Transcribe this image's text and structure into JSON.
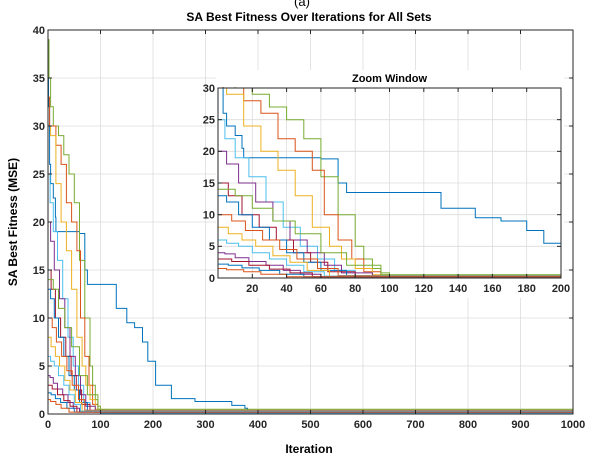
{
  "chart_data": [
    {
      "type": "line",
      "panel_label": "(a)",
      "title": "SA Best Fitness Over Iterations for All Sets",
      "xlabel": "Iteration",
      "ylabel": "SA Best Fitness (MSE)",
      "xlim": [
        0,
        1000
      ],
      "ylim": [
        0,
        40
      ],
      "xticks": [
        0,
        100,
        200,
        300,
        400,
        500,
        600,
        700,
        800,
        900,
        1000
      ],
      "yticks": [
        0,
        5,
        10,
        15,
        20,
        25,
        30,
        35,
        40
      ],
      "grid": true,
      "legend": "none",
      "colors": [
        "#0072BD",
        "#D95319",
        "#EDB120",
        "#7E2F8E",
        "#77AC30",
        "#4DBEEE",
        "#A2142F"
      ],
      "series": [
        {
          "color": "#0072BD",
          "x": [
            0,
            1,
            3,
            5,
            10,
            14,
            15,
            20,
            30,
            35,
            40,
            48,
            60,
            70,
            75,
            80,
            100,
            110,
            130,
            140,
            145,
            150,
            165,
            180,
            190,
            205,
            215,
            235,
            260,
            280,
            300,
            310,
            350,
            375,
            380,
            390,
            430,
            450,
            500,
            520,
            600,
            700,
            800,
            900,
            1000
          ],
          "y": [
            38,
            32,
            26,
            24,
            22.5,
            20.5,
            19,
            19,
            19,
            19,
            19,
            19,
            18.8,
            15,
            13.5,
            13.5,
            13.5,
            13.5,
            11,
            11,
            11,
            9.5,
            9,
            7.5,
            5.5,
            3,
            3,
            1.6,
            1.6,
            1.3,
            1.3,
            1.3,
            0.9,
            0.6,
            0.3,
            0.2,
            0.15,
            0.1,
            0.1,
            0.05,
            0.03,
            0.02,
            0.02,
            0.02,
            0.02
          ]
        },
        {
          "color": "#77AC30",
          "x": [
            0,
            2,
            5,
            10,
            20,
            30,
            40,
            50,
            60,
            70,
            80,
            85,
            90,
            95,
            100,
            110,
            200,
            1000
          ],
          "y": [
            39,
            35,
            32,
            30,
            29,
            27,
            25,
            22,
            16,
            10,
            5,
            3,
            1.5,
            0.8,
            0.3,
            0.1,
            0.05,
            0.05
          ]
        },
        {
          "color": "#D95319",
          "x": [
            0,
            3,
            8,
            15,
            25,
            35,
            45,
            55,
            62,
            70,
            78,
            85,
            95,
            110,
            1000
          ],
          "y": [
            33,
            30,
            30,
            28,
            26,
            22,
            20,
            17,
            10,
            6,
            3,
            1,
            0.4,
            0.1,
            0.05
          ]
        },
        {
          "color": "#EDB120",
          "x": [
            0,
            5,
            15,
            25,
            35,
            45,
            55,
            65,
            72,
            80,
            90,
            100,
            1000
          ],
          "y": [
            30,
            29,
            24,
            20,
            17,
            13,
            8,
            5,
            3,
            1.5,
            0.5,
            0.2,
            0.05
          ]
        },
        {
          "color": "#4DBEEE",
          "x": [
            0,
            4,
            10,
            18,
            28,
            38,
            48,
            58,
            68,
            80,
            100,
            1000
          ],
          "y": [
            25,
            22,
            19,
            16,
            12,
            8,
            5,
            3,
            1.2,
            0.4,
            0.1,
            0.05
          ]
        },
        {
          "color": "#7E2F8E",
          "x": [
            0,
            5,
            12,
            22,
            32,
            42,
            52,
            62,
            72,
            90,
            1000
          ],
          "y": [
            20,
            18,
            15,
            12,
            9,
            6,
            4,
            2,
            0.8,
            0.2,
            0.05
          ]
        },
        {
          "color": "#A2142F",
          "x": [
            0,
            6,
            14,
            24,
            34,
            44,
            54,
            64,
            80,
            1000
          ],
          "y": [
            15,
            13,
            10,
            8,
            6,
            4,
            2.5,
            1,
            0.3,
            0.05
          ]
        },
        {
          "color": "#0072BD",
          "x": [
            0,
            5,
            12,
            20,
            30,
            40,
            50,
            60,
            75,
            1000
          ],
          "y": [
            13,
            12,
            10,
            8,
            6,
            4,
            2.5,
            1.2,
            0.3,
            0.05
          ]
        },
        {
          "color": "#D95319",
          "x": [
            0,
            8,
            16,
            26,
            36,
            46,
            58,
            70,
            1000
          ],
          "y": [
            10,
            9,
            7.5,
            6,
            4.5,
            3,
            1.5,
            0.4,
            0.05
          ]
        },
        {
          "color": "#77AC30",
          "x": [
            0,
            10,
            20,
            32,
            45,
            60,
            75,
            95,
            1000
          ],
          "y": [
            14,
            13,
            11,
            9,
            7,
            4,
            2,
            0.5,
            0.05
          ]
        },
        {
          "color": "#EDB120",
          "x": [
            0,
            6,
            14,
            22,
            32,
            42,
            52,
            65,
            1000
          ],
          "y": [
            8,
            7,
            6,
            5,
            3.5,
            2.5,
            1.2,
            0.3,
            0.05
          ]
        },
        {
          "color": "#4DBEEE",
          "x": [
            0,
            5,
            12,
            20,
            30,
            40,
            50,
            62,
            1000
          ],
          "y": [
            6,
            5.5,
            5,
            4,
            3,
            2,
            1,
            0.3,
            0.05
          ]
        },
        {
          "color": "#7E2F8E",
          "x": [
            0,
            4,
            10,
            18,
            28,
            38,
            48,
            60,
            1000
          ],
          "y": [
            4,
            3.8,
            3.2,
            2.6,
            2,
            1.2,
            0.6,
            0.2,
            0.05
          ]
        },
        {
          "color": "#A2142F",
          "x": [
            0,
            8,
            18,
            30,
            42,
            55,
            1000
          ],
          "y": [
            3,
            2.6,
            2.0,
            1.4,
            0.8,
            0.2,
            0.05
          ]
        },
        {
          "color": "#0072BD",
          "x": [
            0,
            6,
            14,
            24,
            36,
            50,
            1000
          ],
          "y": [
            2.2,
            2,
            1.6,
            1.2,
            0.6,
            0.2,
            0.05
          ]
        },
        {
          "color": "#D95319",
          "x": [
            0,
            5,
            15,
            25,
            40,
            1000
          ],
          "y": [
            1.5,
            1.3,
            1,
            0.6,
            0.2,
            0.05
          ]
        }
      ]
    },
    {
      "type": "line",
      "title": "Zoom Window",
      "xlim": [
        0,
        200
      ],
      "ylim": [
        0,
        30
      ],
      "xticks": [
        20,
        40,
        60,
        80,
        100,
        120,
        140,
        160,
        180,
        200
      ],
      "yticks": [
        0,
        5,
        10,
        15,
        20,
        25,
        30
      ],
      "grid": true,
      "legend": "none"
    }
  ]
}
